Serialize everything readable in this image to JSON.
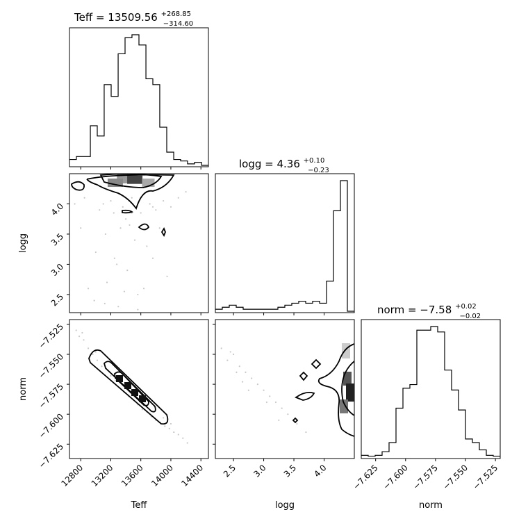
{
  "chart_data": {
    "type": "corner",
    "parameters": [
      "Teff",
      "logg",
      "norm"
    ],
    "titles": [
      {
        "label": "Teff = 13509.56",
        "upper": "+268.85",
        "lower": "−314.60"
      },
      {
        "label": "logg = 4.36",
        "upper": "+0.10",
        "lower": "−0.23"
      },
      {
        "label": "norm = −7.58",
        "upper": "+0.02",
        "lower": "−0.02"
      }
    ],
    "axis_labels": {
      "x": [
        "Teff",
        "logg",
        "norm"
      ],
      "y": [
        "logg",
        "norm"
      ]
    },
    "ranges": {
      "Teff": [
        12650,
        14500
      ],
      "logg": [
        2.2,
        4.5
      ],
      "norm": [
        -7.637,
        -7.521
      ]
    },
    "tick_labels": {
      "Teff": [
        "12800",
        "13200",
        "13600",
        "14000",
        "14400"
      ],
      "logg": [
        "2.5",
        "3.0",
        "3.5",
        "4.0"
      ],
      "norm": [
        "−7.625",
        "−7.600",
        "−7.575",
        "−7.550",
        "−7.525"
      ]
    },
    "tick_values": {
      "Teff": [
        12800,
        13200,
        13600,
        14000,
        14400
      ],
      "logg": [
        2.5,
        3.0,
        3.5,
        4.0
      ],
      "norm": [
        -7.625,
        -7.6,
        -7.575,
        -7.55,
        -7.525
      ]
    },
    "histograms": {
      "Teff": {
        "edges": [
          12650,
          12742,
          12835,
          12928,
          13020,
          13112,
          13205,
          13298,
          13390,
          13482,
          13575,
          13668,
          13760,
          13852,
          13945,
          14038,
          14130,
          14222,
          14315,
          14408,
          14500
        ],
        "counts": [
          4,
          6,
          6,
          27,
          20,
          55,
          47,
          76,
          87,
          89,
          82,
          59,
          55,
          26,
          9,
          4,
          3,
          1,
          2,
          0
        ]
      },
      "logg": {
        "edges": [
          2.2,
          2.315,
          2.43,
          2.545,
          2.66,
          2.775,
          2.89,
          3.005,
          3.12,
          3.235,
          3.35,
          3.465,
          3.58,
          3.695,
          3.81,
          3.925,
          4.04,
          4.155,
          4.27,
          4.385,
          4.5
        ],
        "counts": [
          1,
          2,
          3,
          2,
          1,
          1,
          1,
          1,
          1,
          2,
          3,
          4,
          5,
          4,
          5,
          4,
          15,
          50,
          65,
          0
        ]
      },
      "norm": {
        "edges": [
          -7.637,
          -7.6312,
          -7.6254,
          -7.6196,
          -7.6138,
          -7.608,
          -7.6022,
          -7.5964,
          -7.5906,
          -7.5848,
          -7.579,
          -7.5732,
          -7.5674,
          -7.5616,
          -7.5558,
          -7.55,
          -7.5442,
          -7.5384,
          -7.5326,
          -7.5268,
          -7.521
        ],
        "counts": [
          1,
          0.5,
          1,
          3,
          8,
          27,
          38,
          40,
          70,
          70,
          72,
          69,
          48,
          37,
          26,
          10,
          8,
          4,
          1,
          0.5
        ]
      }
    },
    "samples_teff_logg": [
      [
        12720,
        4.0
      ],
      [
        12800,
        3.6
      ],
      [
        12850,
        4.1
      ],
      [
        12900,
        2.6
      ],
      [
        12980,
        2.4
      ],
      [
        13000,
        3.2
      ],
      [
        13050,
        3.9
      ],
      [
        13100,
        4.0
      ],
      [
        13130,
        3.5
      ],
      [
        13150,
        2.7
      ],
      [
        13200,
        4.05
      ],
      [
        13240,
        3.85
      ],
      [
        13280,
        3.0
      ],
      [
        13300,
        2.3
      ],
      [
        13330,
        3.6
      ],
      [
        13360,
        3.95
      ],
      [
        13400,
        3.75
      ],
      [
        13420,
        2.9
      ],
      [
        13450,
        3.65
      ],
      [
        13480,
        4.1
      ],
      [
        13520,
        3.4
      ],
      [
        13560,
        2.5
      ],
      [
        13600,
        3.85
      ],
      [
        13640,
        2.6
      ],
      [
        13680,
        3.3
      ],
      [
        13720,
        4.0
      ],
      [
        13760,
        3.1
      ],
      [
        13800,
        3.9
      ],
      [
        13850,
        3.6
      ],
      [
        13900,
        4.05
      ],
      [
        13950,
        2.8
      ],
      [
        14000,
        3.95
      ],
      [
        14100,
        4.1
      ],
      [
        14200,
        4.2
      ],
      [
        13380,
        2.55
      ],
      [
        13250,
        3.1
      ],
      [
        13120,
        2.35
      ],
      [
        13560,
        2.25
      ],
      [
        13480,
        3.85
      ],
      [
        13760,
        3.95
      ]
    ],
    "samples_teff_norm": [
      [
        12740,
        -7.53
      ],
      [
        12780,
        -7.535
      ],
      [
        12840,
        -7.538
      ],
      [
        12900,
        -7.545
      ],
      [
        12960,
        -7.55
      ],
      [
        13020,
        -7.555
      ],
      [
        13080,
        -7.56
      ],
      [
        13140,
        -7.562
      ],
      [
        13200,
        -7.568
      ],
      [
        13260,
        -7.572
      ],
      [
        13320,
        -7.578
      ],
      [
        13380,
        -7.582
      ],
      [
        13440,
        -7.585
      ],
      [
        13500,
        -7.588
      ],
      [
        13560,
        -7.592
      ],
      [
        13620,
        -7.596
      ],
      [
        13680,
        -7.598
      ],
      [
        13740,
        -7.602
      ],
      [
        13800,
        -7.605
      ],
      [
        13860,
        -7.607
      ],
      [
        13920,
        -7.61
      ],
      [
        13980,
        -7.612
      ],
      [
        14040,
        -7.615
      ],
      [
        14100,
        -7.617
      ],
      [
        14160,
        -7.62
      ],
      [
        14220,
        -7.624
      ],
      [
        12820,
        -7.532
      ],
      [
        13000,
        -7.548
      ],
      [
        13900,
        -7.603
      ],
      [
        14000,
        -7.608
      ]
    ],
    "samples_logg_norm": [
      [
        2.3,
        -7.545
      ],
      [
        2.4,
        -7.555
      ],
      [
        2.5,
        -7.55
      ],
      [
        2.6,
        -7.56
      ],
      [
        2.7,
        -7.565
      ],
      [
        2.8,
        -7.57
      ],
      [
        2.9,
        -7.575
      ],
      [
        3.0,
        -7.58
      ],
      [
        3.1,
        -7.585
      ],
      [
        3.2,
        -7.59
      ],
      [
        3.3,
        -7.595
      ],
      [
        3.4,
        -7.6
      ],
      [
        2.55,
        -7.565
      ],
      [
        2.75,
        -7.58
      ],
      [
        3.05,
        -7.59
      ],
      [
        3.25,
        -7.605
      ],
      [
        3.55,
        -7.608
      ],
      [
        3.7,
        -7.615
      ],
      [
        2.45,
        -7.548
      ],
      [
        2.65,
        -7.573
      ]
    ]
  }
}
